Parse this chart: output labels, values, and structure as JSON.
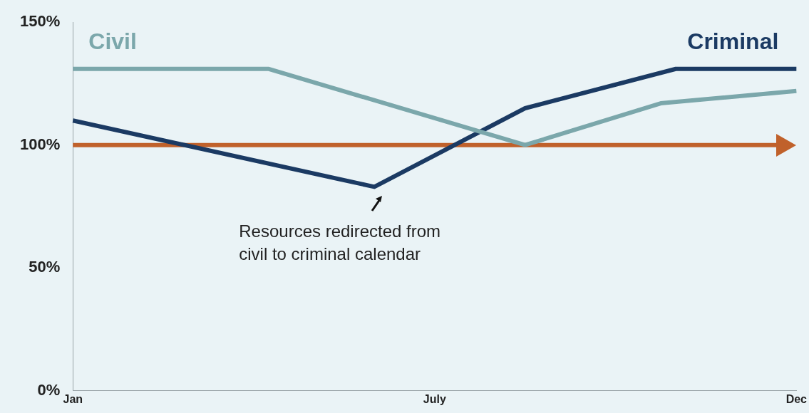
{
  "chart_data": {
    "type": "line",
    "legend": false,
    "categories": [
      "Jan",
      null,
      null,
      null,
      null,
      null,
      null,
      null,
      null,
      null,
      null,
      null,
      null,
      null,
      null,
      null,
      null,
      null,
      null,
      null,
      null,
      null,
      null,
      null,
      "July",
      null,
      null,
      null,
      null,
      null,
      null,
      null,
      null,
      null,
      null,
      null,
      null,
      null,
      null,
      null,
      null,
      null,
      null,
      null,
      null,
      null,
      null,
      null,
      "Dec"
    ],
    "ylim": [
      0,
      150
    ],
    "yticks": [
      {
        "value": 0,
        "label": "0%"
      },
      {
        "value": 50,
        "label": "50%"
      },
      {
        "value": 100,
        "label": "100%"
      },
      {
        "value": 150,
        "label": "150%"
      }
    ],
    "series": [
      {
        "name": "Civil",
        "color": "#7ba7ab",
        "values": [
          131,
          null,
          null,
          null,
          null,
          null,
          null,
          null,
          null,
          null,
          null,
          null,
          null,
          131,
          null,
          null,
          null,
          null,
          null,
          null,
          null,
          null,
          null,
          null,
          null,
          null,
          null,
          null,
          null,
          null,
          100,
          null,
          null,
          null,
          null,
          null,
          null,
          null,
          null,
          117,
          null,
          null,
          null,
          null,
          null,
          null,
          null,
          null,
          122
        ]
      },
      {
        "name": "Criminal",
        "color": "#1b3a63",
        "values": [
          110,
          null,
          null,
          null,
          null,
          null,
          null,
          null,
          null,
          null,
          null,
          null,
          null,
          null,
          null,
          null,
          null,
          null,
          null,
          null,
          83,
          null,
          null,
          null,
          null,
          null,
          null,
          null,
          null,
          null,
          115,
          null,
          null,
          null,
          null,
          null,
          null,
          null,
          null,
          null,
          131,
          null,
          null,
          null,
          null,
          null,
          null,
          null,
          131
        ]
      }
    ],
    "ref_lines": [
      {
        "axis": "y",
        "value": 100,
        "color": "#c0612b"
      }
    ],
    "annotations": [
      "Resources redirected from\ncivil to criminal calendar"
    ]
  }
}
